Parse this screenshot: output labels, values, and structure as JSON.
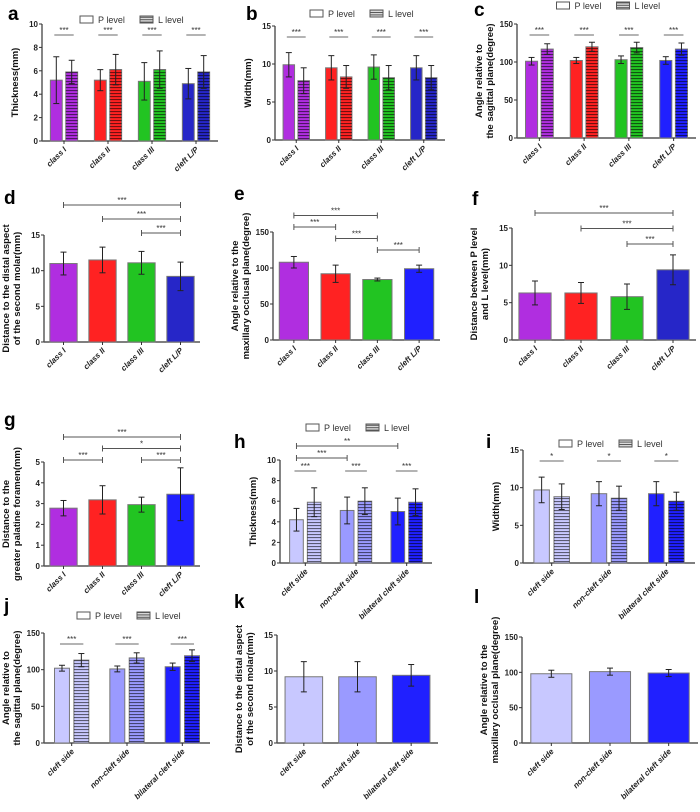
{
  "legend": {
    "p": "P level",
    "l": "L level"
  },
  "colors": {
    "class_i": "#b02ee0",
    "class_ii": "#ff2222",
    "class_iii": "#22c422",
    "cleft_lp": "#2626c8",
    "cleft_lp_bright": "#2020ff",
    "cleft_side": "#c8c8ff",
    "non_cleft_side": "#9a9aff",
    "bilateral_cleft_side": "#2020ff"
  },
  "chart_data": [
    {
      "panel": "a",
      "type": "bar",
      "grouped": true,
      "ylabel": [
        "Thickness(mm)"
      ],
      "ylim": [
        0,
        10
      ],
      "yticks": [
        0,
        2,
        4,
        6,
        8,
        10
      ],
      "categories": [
        "class I",
        "class II",
        "class III",
        "cleft L/P"
      ],
      "color_keys": [
        "class_i",
        "class_ii",
        "class_iii",
        "cleft_lp"
      ],
      "series": [
        {
          "name": "P level",
          "values": [
            5.2,
            5.2,
            5.1,
            4.9
          ],
          "errors": [
            2.0,
            0.9,
            1.6,
            1.3
          ]
        },
        {
          "name": "L level",
          "values": [
            5.9,
            6.1,
            6.1,
            5.9
          ],
          "errors": [
            1.0,
            1.3,
            1.6,
            1.4
          ]
        }
      ],
      "pair_sig": [
        "***",
        "***",
        "***",
        "***"
      ],
      "brackets": []
    },
    {
      "panel": "b",
      "type": "bar",
      "grouped": true,
      "ylabel": [
        "Width(mm)"
      ],
      "ylim": [
        0,
        15
      ],
      "yticks": [
        0,
        5,
        10,
        15
      ],
      "categories": [
        "class I",
        "class II",
        "class III",
        "cleft L/P"
      ],
      "color_keys": [
        "class_i",
        "class_ii",
        "class_iii",
        "cleft_lp"
      ],
      "series": [
        {
          "name": "P level",
          "values": [
            9.9,
            9.5,
            9.6,
            9.5
          ],
          "errors": [
            1.6,
            1.6,
            1.6,
            1.6
          ]
        },
        {
          "name": "L level",
          "values": [
            7.8,
            8.3,
            8.2,
            8.2
          ],
          "errors": [
            1.7,
            1.5,
            1.6,
            1.6
          ]
        }
      ],
      "pair_sig": [
        "***",
        "***",
        "***",
        "***"
      ],
      "brackets": []
    },
    {
      "panel": "c",
      "type": "bar",
      "grouped": true,
      "ylabel": [
        "Angle relative to",
        "the sagittal plane(degree)"
      ],
      "ylim": [
        0,
        150
      ],
      "yticks": [
        0,
        50,
        100,
        150
      ],
      "categories": [
        "class I",
        "class II",
        "class III",
        "cleft L/P"
      ],
      "color_keys": [
        "class_i",
        "class_ii",
        "class_iii",
        "cleft_lp_bright"
      ],
      "series": [
        {
          "name": "P level",
          "values": [
            101,
            102,
            103,
            102
          ],
          "errors": [
            5,
            4,
            5,
            5
          ]
        },
        {
          "name": "L level",
          "values": [
            117,
            120,
            119,
            117
          ],
          "errors": [
            7,
            6,
            7,
            8
          ]
        }
      ],
      "pair_sig": [
        "***",
        "***",
        "***",
        "***"
      ],
      "brackets": []
    },
    {
      "panel": "d",
      "type": "bar",
      "grouped": false,
      "ylabel": [
        "Distance to the distal aspect",
        "of the second molar(mm)"
      ],
      "ylim": [
        0,
        15
      ],
      "yticks": [
        0,
        5,
        10,
        15
      ],
      "categories": [
        "class I",
        "class II",
        "class III",
        "cleft L/P"
      ],
      "color_keys": [
        "class_i",
        "class_ii",
        "class_iii",
        "cleft_lp"
      ],
      "series": [
        {
          "name": "",
          "values": [
            11.0,
            11.5,
            11.1,
            9.2
          ],
          "errors": [
            1.6,
            1.8,
            1.6,
            2.0
          ]
        }
      ],
      "brackets": [
        {
          "from": 0,
          "to": 3,
          "label": "***",
          "level": 3
        },
        {
          "from": 1,
          "to": 3,
          "label": "***",
          "level": 2
        },
        {
          "from": 2,
          "to": 3,
          "label": "***",
          "level": 1
        }
      ]
    },
    {
      "panel": "e",
      "type": "bar",
      "grouped": false,
      "ylabel": [
        "Angle relative to the",
        "maxillary occlusal plane(degree)"
      ],
      "ylim": [
        0,
        150
      ],
      "yticks": [
        0,
        50,
        100,
        150
      ],
      "categories": [
        "class I",
        "class II",
        "class III",
        "cleft L/P"
      ],
      "color_keys": [
        "class_i",
        "class_ii",
        "class_iii",
        "cleft_lp_bright"
      ],
      "series": [
        {
          "name": "",
          "values": [
            108,
            92,
            84,
            99
          ],
          "errors": [
            8,
            12,
            2,
            5
          ]
        }
      ],
      "brackets": [
        {
          "from": 0,
          "to": 2,
          "label": "***",
          "level": 4
        },
        {
          "from": 0,
          "to": 1,
          "label": "***",
          "level": 3
        },
        {
          "from": 1,
          "to": 2,
          "label": "***",
          "level": 2
        },
        {
          "from": 2,
          "to": 3,
          "label": "***",
          "level": 1
        }
      ]
    },
    {
      "panel": "f",
      "type": "bar",
      "grouped": false,
      "ylabel": [
        "Distance between P level",
        "and L level(mm)"
      ],
      "ylim": [
        0,
        15
      ],
      "yticks": [
        0,
        5,
        10,
        15
      ],
      "categories": [
        "class I",
        "class II",
        "class III",
        "cleft L/P"
      ],
      "color_keys": [
        "class_i",
        "class_ii",
        "class_iii",
        "cleft_lp"
      ],
      "series": [
        {
          "name": "",
          "values": [
            6.3,
            6.3,
            5.8,
            9.4
          ],
          "errors": [
            1.6,
            1.4,
            1.7,
            2.0
          ]
        }
      ],
      "brackets": [
        {
          "from": 0,
          "to": 3,
          "label": "***",
          "level": 3
        },
        {
          "from": 1,
          "to": 3,
          "label": "***",
          "level": 2
        },
        {
          "from": 2,
          "to": 3,
          "label": "***",
          "level": 1
        }
      ]
    },
    {
      "panel": "g",
      "type": "bar",
      "grouped": false,
      "ylabel": [
        "Distance to the",
        "greater palatine foramen(mm)"
      ],
      "ylim": [
        0,
        5
      ],
      "yticks": [
        0,
        1,
        2,
        3,
        4,
        5
      ],
      "categories": [
        "class I",
        "class II",
        "class III",
        "cleft L/P"
      ],
      "color_keys": [
        "class_i",
        "class_ii",
        "class_iii",
        "cleft_lp_bright"
      ],
      "series": [
        {
          "name": "",
          "values": [
            2.78,
            3.18,
            2.95,
            3.45
          ],
          "errors": [
            0.37,
            0.68,
            0.36,
            1.27
          ]
        }
      ],
      "brackets": [
        {
          "from": 0,
          "to": 3,
          "label": "***",
          "level": 3
        },
        {
          "from": 1,
          "to": 3,
          "label": "*",
          "level": 2
        },
        {
          "from": 0,
          "to": 1,
          "label": "***",
          "level": 1
        },
        {
          "from": 2,
          "to": 3,
          "label": "***",
          "level": 1
        }
      ]
    },
    {
      "panel": "h",
      "type": "bar",
      "grouped": true,
      "ylabel": [
        "Thickness(mm)"
      ],
      "ylim": [
        0,
        10
      ],
      "yticks": [
        0,
        2,
        4,
        6,
        8,
        10
      ],
      "categories": [
        "cleft side",
        "non-cleft side",
        "bilateral cleft side"
      ],
      "color_keys": [
        "cleft_side",
        "non_cleft_side",
        "bilateral_cleft_side"
      ],
      "series": [
        {
          "name": "P level",
          "values": [
            4.2,
            5.1,
            5.0
          ],
          "errors": [
            1.1,
            1.3,
            1.3
          ]
        },
        {
          "name": "L level",
          "values": [
            5.9,
            6.0,
            5.9
          ],
          "errors": [
            1.4,
            1.3,
            1.3
          ]
        }
      ],
      "pair_sig": [
        "***",
        "***",
        "***"
      ],
      "brackets": [
        {
          "from": 0,
          "to": 2,
          "label": "**",
          "level": 2
        },
        {
          "from": 0,
          "to": 1,
          "label": "***",
          "level": 1
        }
      ]
    },
    {
      "panel": "i",
      "type": "bar",
      "grouped": true,
      "ylabel": [
        "Width(mm)"
      ],
      "ylim": [
        0,
        15
      ],
      "yticks": [
        0,
        5,
        10,
        15
      ],
      "categories": [
        "cleft side",
        "non-cleft side",
        "bilateral cleft side"
      ],
      "color_keys": [
        "cleft_side",
        "non_cleft_side",
        "bilateral_cleft_side"
      ],
      "series": [
        {
          "name": "P level",
          "values": [
            9.7,
            9.2,
            9.2
          ],
          "errors": [
            1.7,
            1.6,
            1.6
          ]
        },
        {
          "name": "L level",
          "values": [
            8.8,
            8.6,
            8.2
          ],
          "errors": [
            1.7,
            1.6,
            1.2
          ]
        }
      ],
      "pair_sig": [
        "*",
        "*",
        "*"
      ],
      "brackets": []
    },
    {
      "panel": "j",
      "type": "bar",
      "grouped": true,
      "ylabel": [
        "Angle relative to",
        "the sagittal plane(degree)"
      ],
      "ylim": [
        0,
        150
      ],
      "yticks": [
        0,
        50,
        100,
        150
      ],
      "categories": [
        "cleft side",
        "non-cleft side",
        "bilateral cleft side"
      ],
      "color_keys": [
        "cleft_side",
        "non_cleft_side",
        "bilateral_cleft_side"
      ],
      "series": [
        {
          "name": "P level",
          "values": [
            102,
            101,
            104
          ],
          "errors": [
            4,
            4,
            5
          ]
        },
        {
          "name": "L level",
          "values": [
            113,
            116,
            119
          ],
          "errors": [
            9,
            7,
            8
          ]
        }
      ],
      "pair_sig": [
        "***",
        "***",
        "***"
      ],
      "brackets": []
    },
    {
      "panel": "k",
      "type": "bar",
      "grouped": false,
      "ylabel": [
        "Distance to the distal aspect",
        "of the second molar(mm)"
      ],
      "ylim": [
        0,
        15
      ],
      "yticks": [
        0,
        5,
        10,
        15
      ],
      "categories": [
        "cleft side",
        "non-cleft side",
        "bilateral cleft side"
      ],
      "color_keys": [
        "cleft_side",
        "non_cleft_side",
        "bilateral_cleft_side"
      ],
      "series": [
        {
          "name": "",
          "values": [
            9.2,
            9.2,
            9.4
          ],
          "errors": [
            2.1,
            2.1,
            1.5
          ]
        }
      ],
      "brackets": []
    },
    {
      "panel": "l",
      "type": "bar",
      "grouped": false,
      "ylabel": [
        "Angle relative to the",
        "maxillary occlusal plane(degree)"
      ],
      "ylim": [
        0,
        150
      ],
      "yticks": [
        0,
        50,
        100,
        150
      ],
      "categories": [
        "cleft side",
        "non-cleft side",
        "bilateral cleft side"
      ],
      "color_keys": [
        "cleft_side",
        "non_cleft_side",
        "bilateral_cleft_side"
      ],
      "series": [
        {
          "name": "",
          "values": [
            98,
            101,
            99
          ],
          "errors": [
            5,
            5,
            5
          ]
        }
      ],
      "brackets": []
    }
  ]
}
